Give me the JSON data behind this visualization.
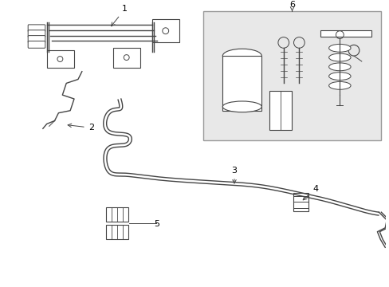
{
  "bg_color": "#ffffff",
  "line_color": "#444444",
  "box_bg": "#e8e8e8",
  "box_border": "#999999",
  "label_color": "#000000",
  "figsize": [
    4.89,
    3.6
  ],
  "dpi": 100
}
